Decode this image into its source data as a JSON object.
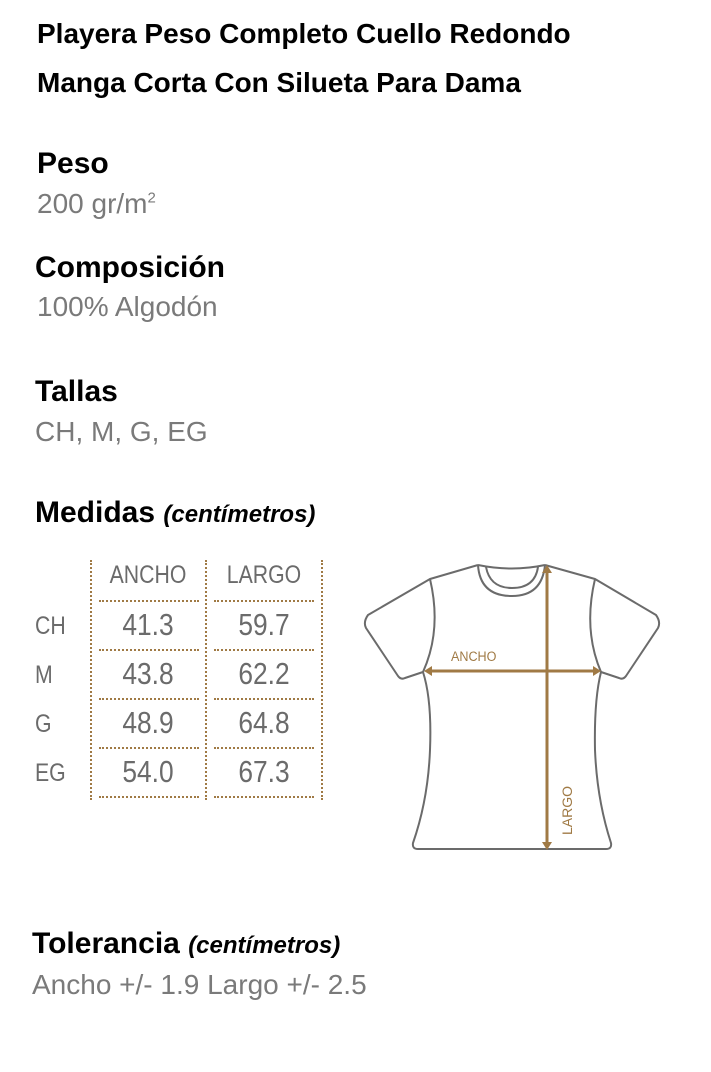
{
  "title": [
    "Playera Peso Completo Cuello Redondo",
    "Manga Corta Con Silueta Para Dama"
  ],
  "peso": {
    "label": "Peso",
    "value": "200 gr/m",
    "sup": "2"
  },
  "composicion": {
    "label": "Composición",
    "value": "100% Algodón"
  },
  "tallas": {
    "label": "Tallas",
    "value": "CH, M, G, EG"
  },
  "medidas": {
    "label": "Medidas",
    "unit": "(centímetros)",
    "columns": [
      "ANCHO",
      "LARGO"
    ],
    "rows": [
      {
        "size": "CH",
        "ancho": "41.3",
        "largo": "59.7"
      },
      {
        "size": "M",
        "ancho": "43.8",
        "largo": "62.2"
      },
      {
        "size": "G",
        "ancho": "48.9",
        "largo": "64.8"
      },
      {
        "size": "EG",
        "ancho": "54.0",
        "largo": "67.3"
      }
    ]
  },
  "diagram": {
    "ancho_label": "ANCHO",
    "largo_label": "LARGO",
    "accent": "#a07a45",
    "outline": "#6b6b6b"
  },
  "tolerancia": {
    "label": "Tolerancia",
    "unit": "(centímetros)",
    "value": "Ancho +/- 1.9 Largo +/- 2.5"
  }
}
